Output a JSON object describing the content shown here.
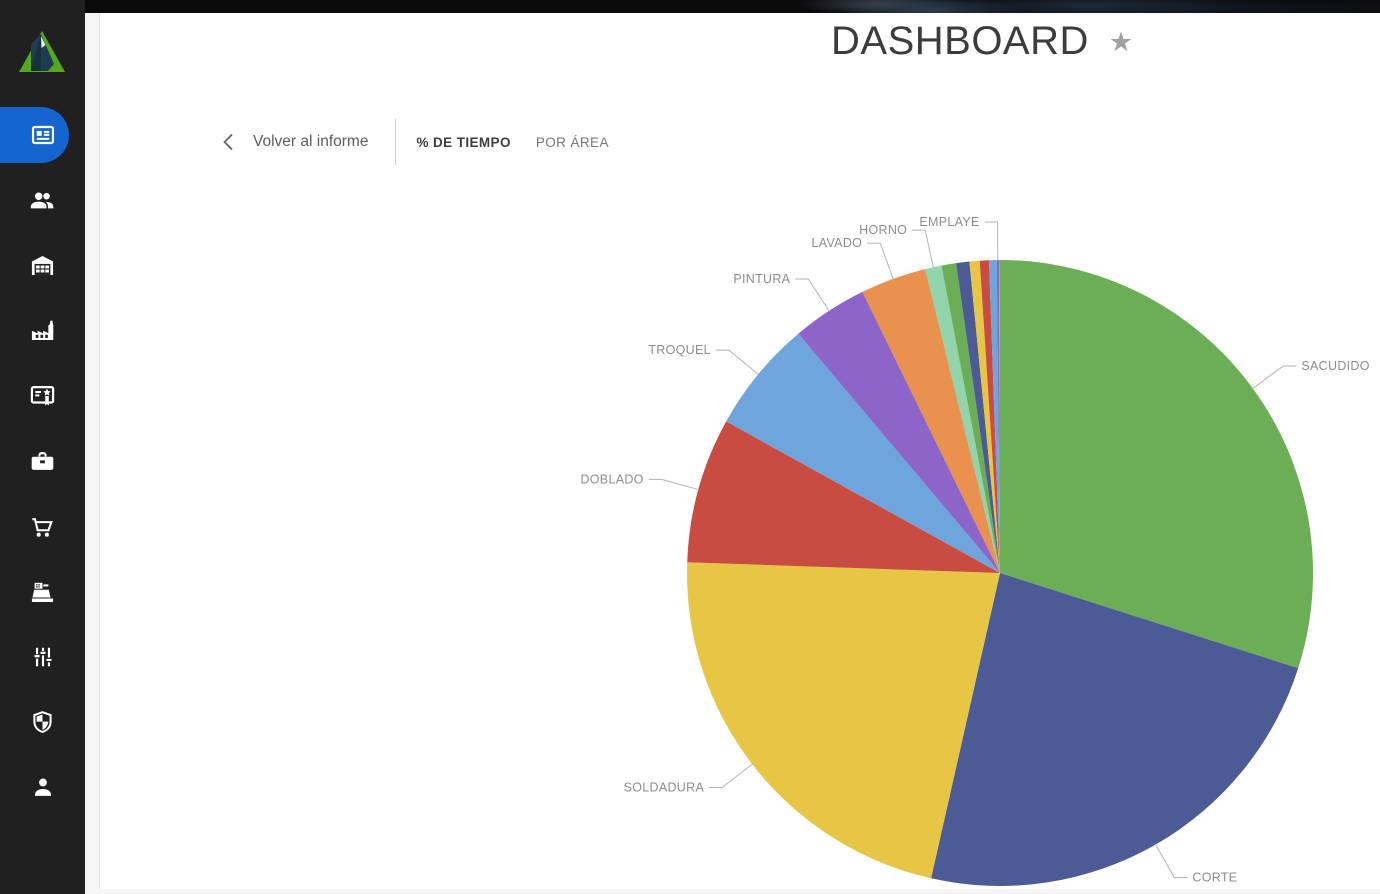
{
  "app": {
    "title": "DASHBOARD",
    "favorite_icon": "star-icon",
    "accent_color": "#1565D0",
    "sidebar_bg": "#202020"
  },
  "sidebar": {
    "logo": "company-logo",
    "items": [
      {
        "id": "dashboard",
        "icon": "newspaper-icon",
        "active": true
      },
      {
        "id": "people",
        "icon": "people-icon",
        "active": false
      },
      {
        "id": "warehouse",
        "icon": "warehouse-icon",
        "active": false
      },
      {
        "id": "factory",
        "icon": "factory-icon",
        "active": false
      },
      {
        "id": "certificate",
        "icon": "certificate-icon",
        "active": false
      },
      {
        "id": "briefcase",
        "icon": "briefcase-icon",
        "active": false
      },
      {
        "id": "cart",
        "icon": "shopping-cart-icon",
        "active": false
      },
      {
        "id": "register",
        "icon": "cash-register-icon",
        "active": false
      },
      {
        "id": "sliders",
        "icon": "sliders-icon",
        "active": false
      },
      {
        "id": "shield",
        "icon": "shield-icon",
        "active": false
      },
      {
        "id": "user",
        "icon": "person-icon",
        "active": false
      }
    ]
  },
  "toolbar": {
    "back_icon": "chevron-left-icon",
    "back_label": "Volver al informe",
    "tabs": [
      {
        "label": "% DE TIEMPO",
        "active": true
      },
      {
        "label": "POR ÁREA",
        "active": false
      }
    ]
  },
  "chart_data": {
    "type": "pie",
    "title": "",
    "legend": "none",
    "label_style": "outside-with-leader-lines",
    "label_color": "#8C8C8C",
    "leader_color": "#B3B3B3",
    "start_angle_deg": 0,
    "direction": "clockwise",
    "slices": [
      {
        "label": "SACUDIDO",
        "value": 29.9,
        "color": "#6CAE55",
        "show_label": true
      },
      {
        "label": "CORTE",
        "value": 23.6,
        "color": "#4C5B95",
        "show_label": true
      },
      {
        "label": "SOLDADURA",
        "value": 22.0,
        "color": "#E6C644",
        "show_label": true
      },
      {
        "label": "DOBLADO",
        "value": 7.5,
        "color": "#C94C43",
        "show_label": true
      },
      {
        "label": "TROQUEL",
        "value": 5.8,
        "color": "#6EA5DD",
        "show_label": true
      },
      {
        "label": "PINTURA",
        "value": 3.9,
        "color": "#8D64C8",
        "show_label": true
      },
      {
        "label": "LAVADO",
        "value": 3.4,
        "color": "#E9914F",
        "show_label": true
      },
      {
        "label": "HORNO",
        "value": 0.85,
        "color": "#92D4AB",
        "show_label": true
      },
      {
        "label": "",
        "value": 0.75,
        "color": "#6CAE55",
        "show_label": false
      },
      {
        "label": "",
        "value": 0.68,
        "color": "#4C5B95",
        "show_label": false
      },
      {
        "label": "",
        "value": 0.53,
        "color": "#E6C644",
        "show_label": false
      },
      {
        "label": "",
        "value": 0.47,
        "color": "#C94C43",
        "show_label": false
      },
      {
        "label": "",
        "value": 0.39,
        "color": "#6EA5DD",
        "show_label": false
      },
      {
        "label": "EMPLAYE",
        "value": 0.12,
        "color": "#8D64C8",
        "show_label": true
      },
      {
        "label": "",
        "value": 0.05,
        "color": "#E9914F",
        "show_label": false
      }
    ]
  }
}
